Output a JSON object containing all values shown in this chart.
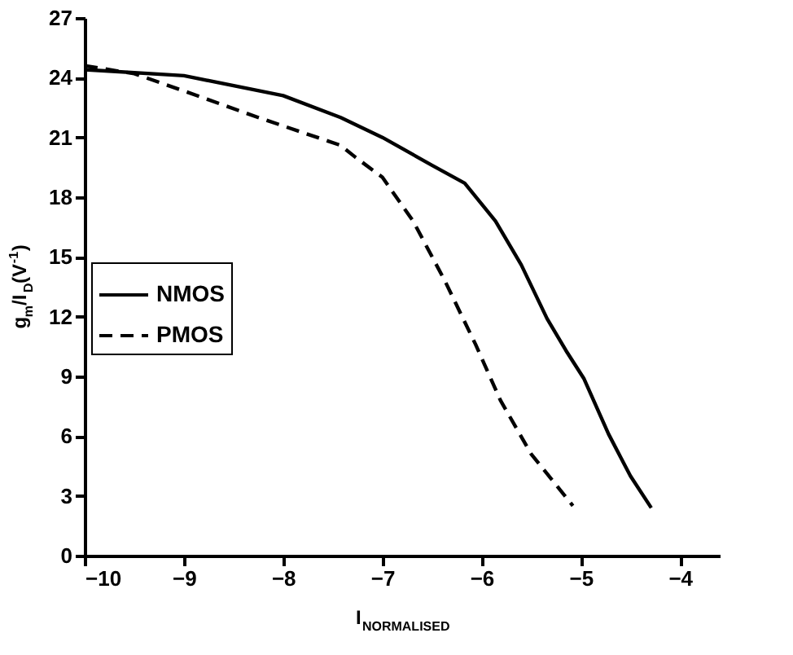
{
  "chart_data": {
    "type": "line",
    "xlabel": "I$_{NORMALISED}$",
    "ylabel": "g$_{m}$/I$_{D}$(V$^{-1}$)",
    "xlim": [
      -10,
      -3.6
    ],
    "xticks": [
      -10,
      -9,
      -8,
      -7,
      -6,
      -5,
      -4
    ],
    "ylim": [
      0,
      27
    ],
    "yticks": [
      0,
      3,
      6,
      9,
      12,
      15,
      18,
      21,
      24,
      27
    ],
    "grid": false,
    "legend": "left",
    "marker": "none",
    "series": [
      {
        "name": "NMOS",
        "color": "#000000",
        "line_style": "solid",
        "x": [
          -10,
          -9,
          -8,
          -7.42,
          -7,
          -6.5,
          -6.17,
          -5.86,
          -5.6,
          -5.34,
          -5.15,
          -4.97,
          -4.72,
          -4.5,
          -4.29
        ],
        "values": [
          24.4,
          24.1,
          23.1,
          22.0,
          21.0,
          19.6,
          18.7,
          16.8,
          14.6,
          11.9,
          10.3,
          8.9,
          6.1,
          4.0,
          2.4
        ]
      },
      {
        "name": "PMOS",
        "color": "#000000",
        "line_style": "dashed",
        "x": [
          -10,
          -9.5,
          -8.98,
          -8.25,
          -7.42,
          -7.27,
          -7.0,
          -6.69,
          -6.37,
          -6.06,
          -5.81,
          -5.5,
          -5.08
        ],
        "values": [
          24.6,
          24.2,
          23.3,
          22.0,
          20.6,
          20.0,
          19.0,
          16.8,
          13.8,
          10.6,
          7.8,
          5.1,
          2.5
        ]
      }
    ]
  }
}
